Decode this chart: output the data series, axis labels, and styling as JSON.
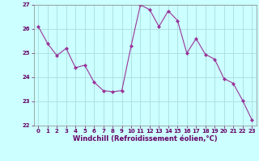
{
  "x": [
    0,
    1,
    2,
    3,
    4,
    5,
    6,
    7,
    8,
    9,
    10,
    11,
    12,
    13,
    14,
    15,
    16,
    17,
    18,
    19,
    20,
    21,
    22,
    23
  ],
  "y": [
    26.1,
    25.4,
    24.9,
    25.2,
    24.4,
    24.5,
    23.8,
    23.45,
    23.4,
    23.45,
    25.3,
    27.0,
    26.8,
    26.1,
    26.75,
    26.35,
    25.0,
    25.6,
    24.95,
    24.75,
    23.95,
    23.75,
    23.05,
    22.25
  ],
  "line_color": "#993399",
  "marker": "D",
  "marker_size": 2,
  "bg_color": "#ccffff",
  "grid_color": "#aadddd",
  "xlabel": "Windchill (Refroidissement éolien,°C)",
  "xlabel_color": "#660066",
  "tick_color": "#660066",
  "ylim": [
    22,
    27
  ],
  "xlim": [
    -0.5,
    23.5
  ],
  "yticks": [
    22,
    23,
    24,
    25,
    26,
    27
  ],
  "xticks": [
    0,
    1,
    2,
    3,
    4,
    5,
    6,
    7,
    8,
    9,
    10,
    11,
    12,
    13,
    14,
    15,
    16,
    17,
    18,
    19,
    20,
    21,
    22,
    23
  ]
}
